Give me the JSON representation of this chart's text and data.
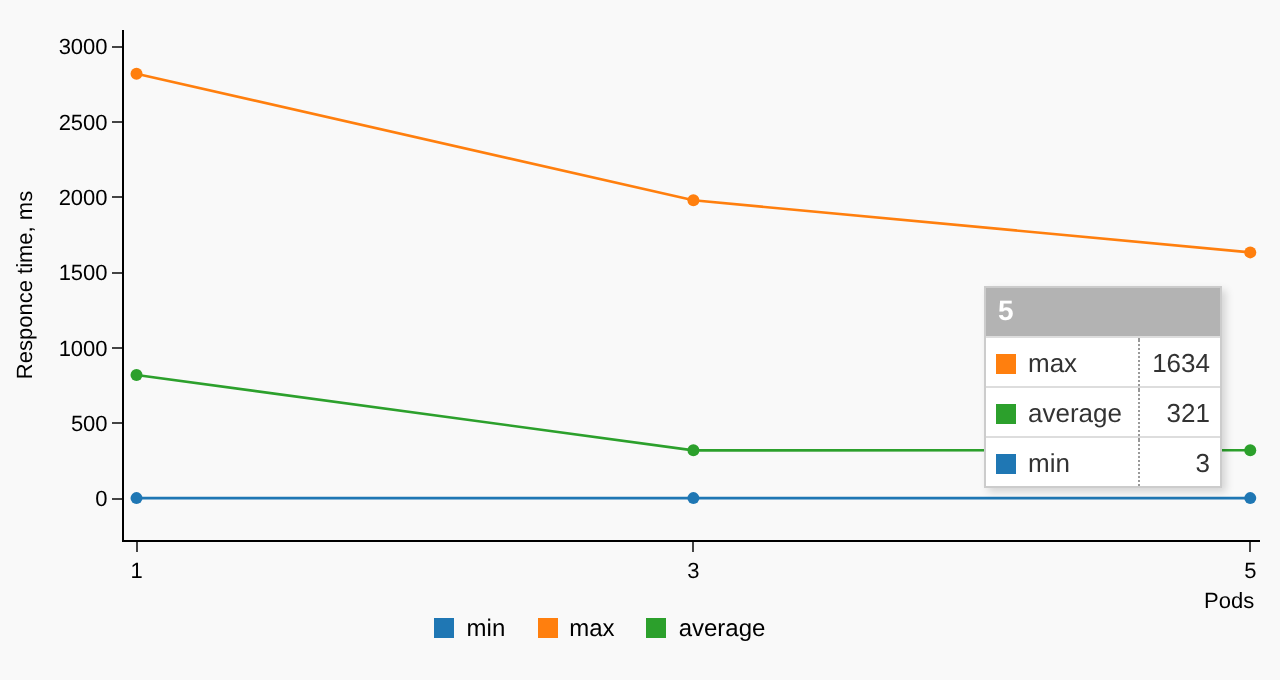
{
  "chart_data": {
    "type": "line",
    "xlabel": "Pods",
    "ylabel": "Responce time, ms",
    "x": [
      1,
      3,
      5
    ],
    "xlim": [
      0.955,
      5.035
    ],
    "xticks": [
      1,
      3,
      5
    ],
    "ylim": [
      -275,
      3110
    ],
    "yticks": [
      0,
      500,
      1000,
      1500,
      2000,
      2500,
      3000
    ],
    "grid": false,
    "legend": "bottom",
    "marker": "circle",
    "line_style": "solid",
    "annotations": [
      "5",
      "3",
      "1634",
      "321"
    ],
    "series": [
      {
        "name": "min",
        "color": "#1f77b4",
        "values": [
          3,
          3,
          3
        ]
      },
      {
        "name": "max",
        "color": "#ff7f0e",
        "values": [
          2820,
          1980,
          1634
        ]
      },
      {
        "name": "average",
        "color": "#2ca02c",
        "values": [
          820,
          320,
          321
        ]
      }
    ]
  }
}
